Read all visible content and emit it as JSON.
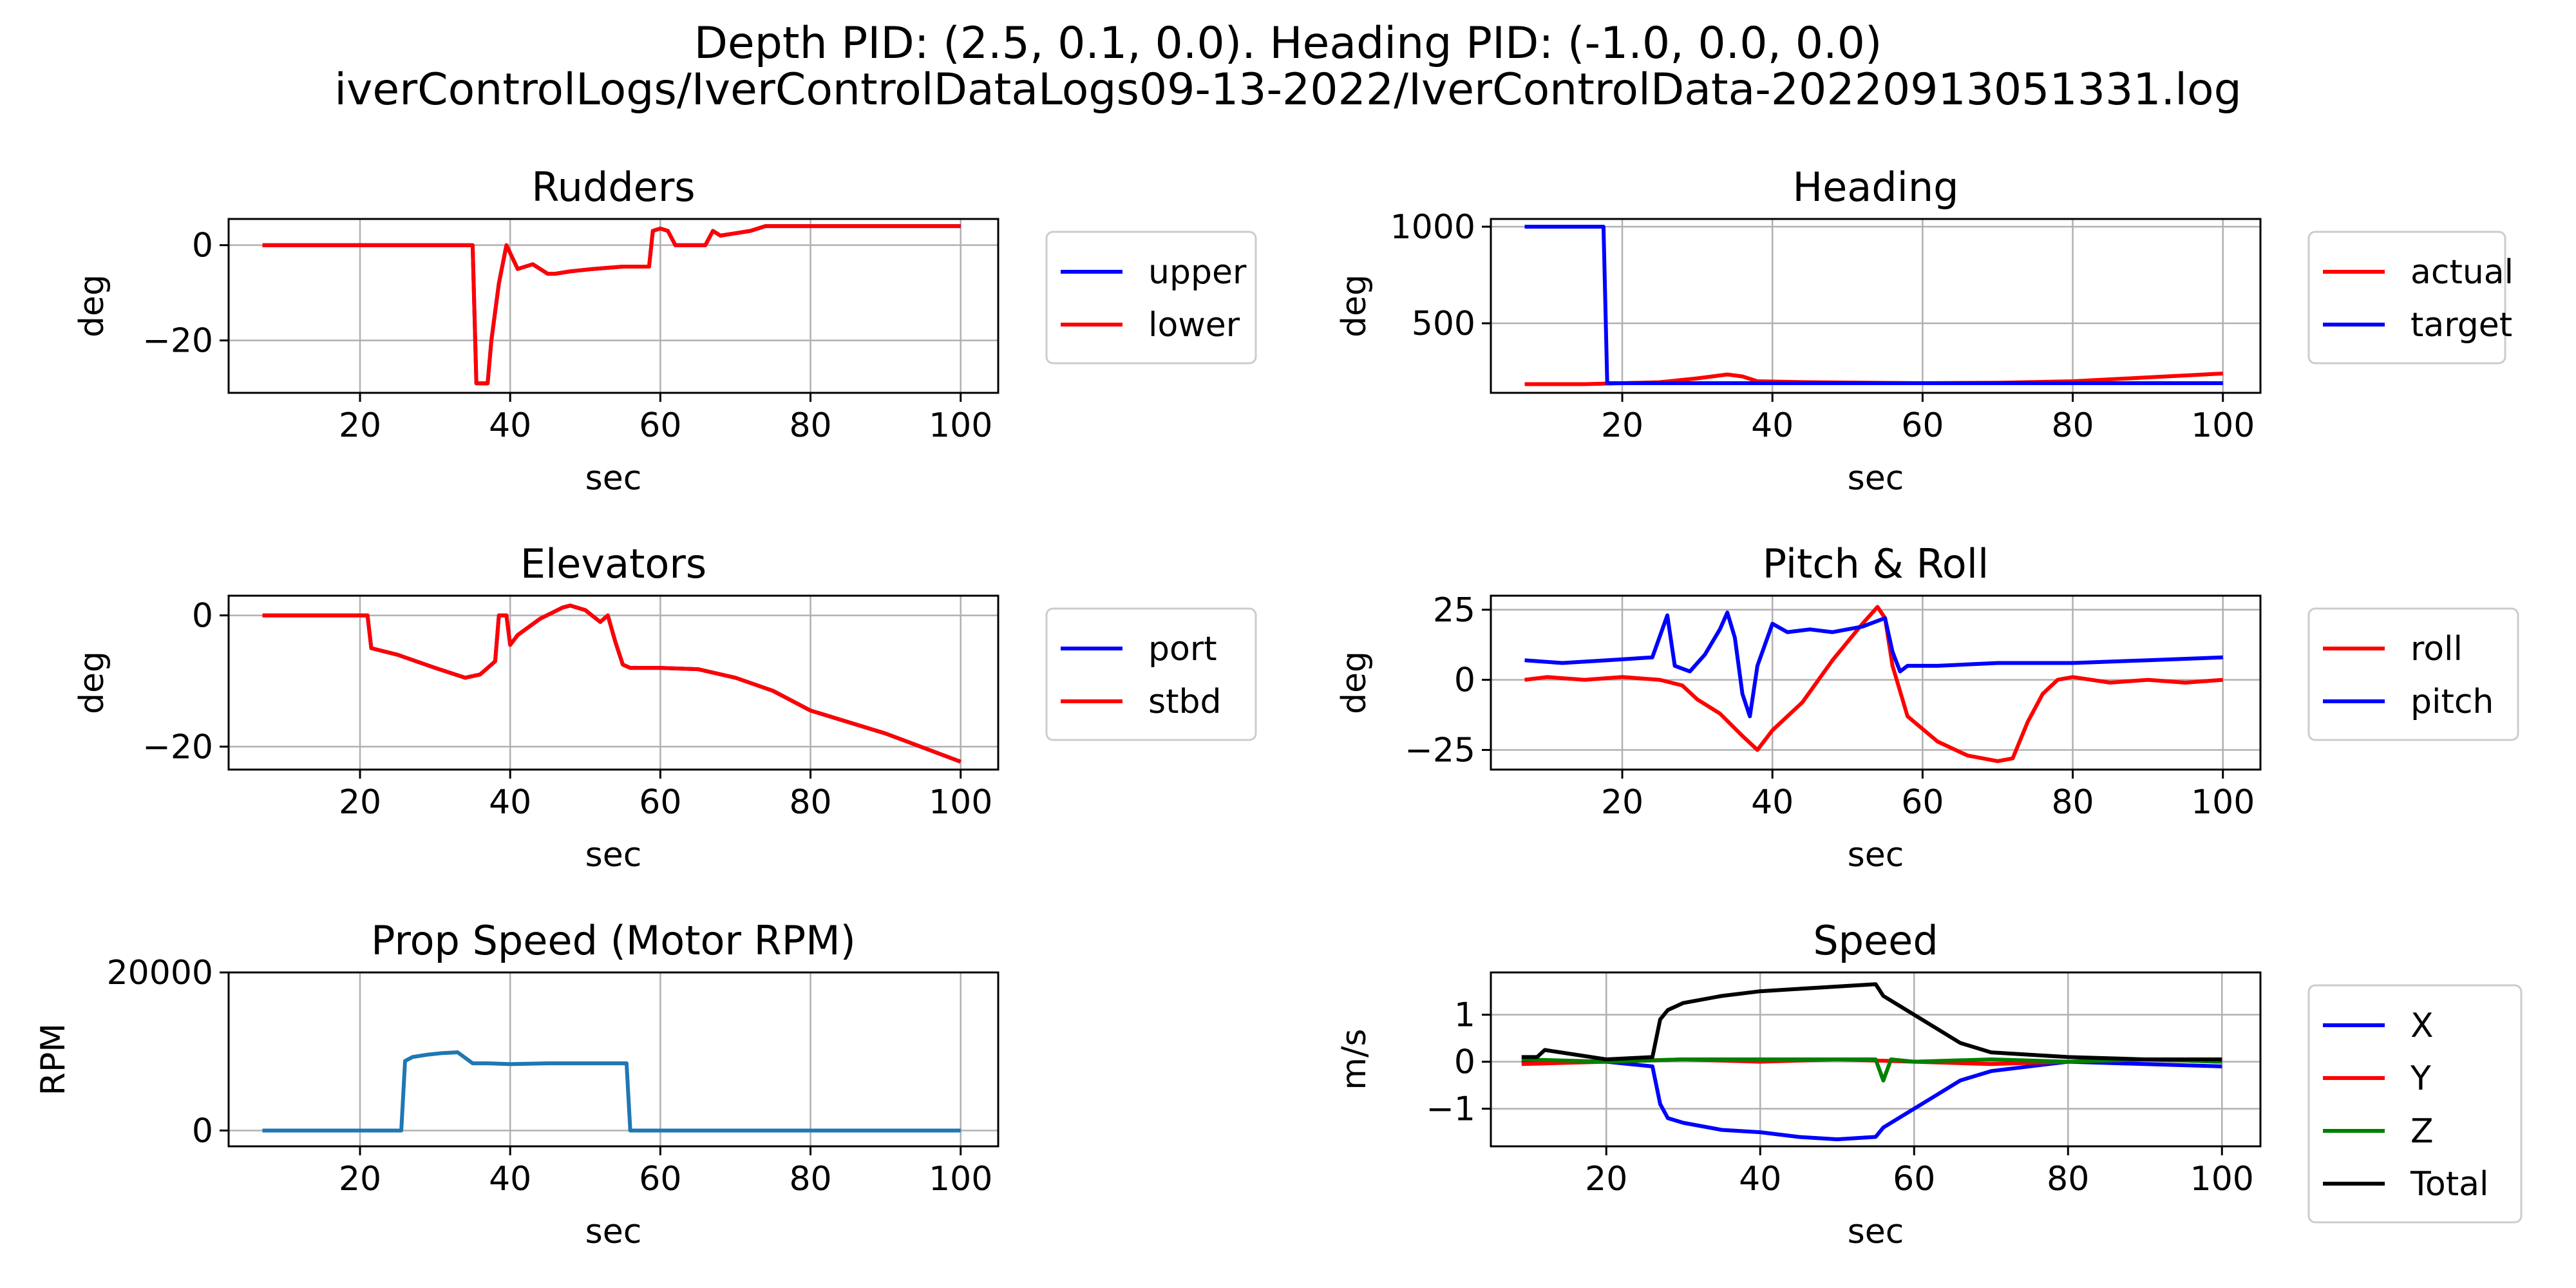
{
  "figure": {
    "title_line1": "Depth PID: (2.5, 0.1, 0.0). Heading PID: (-1.0, 0.0, 0.0)",
    "title_line2": "iverControlLogs/IverControlDataLogs09-13-2022/IverControlData-20220913051331.log"
  },
  "chart_data": [
    {
      "id": "rudders",
      "type": "line",
      "title": "Rudders",
      "xlabel": "sec",
      "ylabel": "deg",
      "xlim": [
        2.5,
        105
      ],
      "ylim": [
        -31,
        5.5
      ],
      "xticks": [
        20,
        40,
        60,
        80,
        100
      ],
      "yticks": [
        -20,
        0
      ],
      "grid": true,
      "legend": "outside-right",
      "series": [
        {
          "name": "upper",
          "color": "#0000ff",
          "x": [
            7,
            35,
            35.5,
            37,
            37.5,
            38.5,
            39.5,
            41,
            43,
            45,
            46,
            48,
            51,
            55,
            58.5,
            59,
            60,
            61,
            62,
            66,
            67,
            68,
            70,
            72,
            74,
            100
          ],
          "y": [
            0,
            0,
            -29,
            -29,
            -20,
            -8,
            0,
            -5,
            -4,
            -6,
            -6,
            -5.5,
            -5,
            -4.5,
            -4.5,
            3,
            3.5,
            3,
            0,
            0,
            3,
            2,
            2.5,
            3,
            4,
            4
          ]
        },
        {
          "name": "lower",
          "color": "#ff0000",
          "x": [
            7,
            35,
            35.5,
            37,
            37.5,
            38.5,
            39.5,
            41,
            43,
            45,
            46,
            48,
            51,
            55,
            58.5,
            59,
            60,
            61,
            62,
            66,
            67,
            68,
            70,
            72,
            74,
            100
          ],
          "y": [
            0,
            0,
            -29,
            -29,
            -20,
            -8,
            0,
            -5,
            -4,
            -6,
            -6,
            -5.5,
            -5,
            -4.5,
            -4.5,
            3,
            3.5,
            3,
            0,
            0,
            3,
            2,
            2.5,
            3,
            4,
            4
          ]
        }
      ]
    },
    {
      "id": "heading",
      "type": "line",
      "title": "Heading",
      "xlabel": "sec",
      "ylabel": "deg",
      "xlim": [
        2.5,
        105
      ],
      "ylim": [
        140,
        1040
      ],
      "xticks": [
        20,
        40,
        60,
        80,
        100
      ],
      "yticks": [
        500,
        1000
      ],
      "grid": true,
      "legend": "outside-right",
      "series": [
        {
          "name": "actual",
          "color": "#ff0000",
          "x": [
            7,
            15,
            20,
            25,
            30,
            34,
            36,
            38,
            45,
            60,
            70,
            80,
            90,
            100
          ],
          "y": [
            185,
            185,
            190,
            195,
            215,
            235,
            225,
            200,
            195,
            190,
            192,
            200,
            220,
            240
          ]
        },
        {
          "name": "target",
          "color": "#0000ff",
          "x": [
            7,
            17.5,
            18,
            30,
            40,
            60,
            80,
            100
          ],
          "y": [
            1000,
            1000,
            190,
            190,
            190,
            190,
            190,
            190
          ]
        }
      ]
    },
    {
      "id": "elevators",
      "type": "line",
      "title": "Elevators",
      "xlabel": "sec",
      "ylabel": "deg",
      "xlim": [
        2.5,
        105
      ],
      "ylim": [
        -23.5,
        3
      ],
      "xticks": [
        20,
        40,
        60,
        80,
        100
      ],
      "yticks": [
        -20,
        0
      ],
      "grid": true,
      "legend": "outside-right",
      "series": [
        {
          "name": "port",
          "color": "#0000ff",
          "x": [
            7,
            21,
            21.5,
            25,
            30,
            34,
            36,
            38,
            38.5,
            39.5,
            40,
            41,
            44,
            47,
            48,
            50,
            52,
            53,
            54,
            55,
            56,
            60,
            65,
            70,
            75,
            80,
            90,
            100
          ],
          "y": [
            0,
            0,
            -5,
            -6,
            -8,
            -9.5,
            -9,
            -7,
            0,
            0,
            -4.5,
            -3,
            -0.5,
            1.2,
            1.5,
            0.8,
            -1,
            0,
            -4,
            -7.5,
            -8,
            -8,
            -8.2,
            -9.5,
            -11.5,
            -14.5,
            -18,
            -22.3
          ]
        },
        {
          "name": "stbd",
          "color": "#ff0000",
          "x": [
            7,
            21,
            21.5,
            25,
            30,
            34,
            36,
            38,
            38.5,
            39.5,
            40,
            41,
            44,
            47,
            48,
            50,
            52,
            53,
            54,
            55,
            56,
            60,
            65,
            70,
            75,
            80,
            90,
            100
          ],
          "y": [
            0,
            0,
            -5,
            -6,
            -8,
            -9.5,
            -9,
            -7,
            0,
            0,
            -4.5,
            -3,
            -0.5,
            1.2,
            1.5,
            0.8,
            -1,
            0,
            -4,
            -7.5,
            -8,
            -8,
            -8.2,
            -9.5,
            -11.5,
            -14.5,
            -18,
            -22.3
          ]
        }
      ]
    },
    {
      "id": "pitchroll",
      "type": "line",
      "title": "Pitch & Roll",
      "xlabel": "sec",
      "ylabel": "deg",
      "xlim": [
        2.5,
        105
      ],
      "ylim": [
        -32,
        30
      ],
      "xticks": [
        20,
        40,
        60,
        80,
        100
      ],
      "yticks": [
        -25,
        0,
        25
      ],
      "grid": true,
      "legend": "outside-right",
      "series": [
        {
          "name": "roll",
          "color": "#ff0000",
          "x": [
            7,
            10,
            15,
            20,
            25,
            28,
            30,
            33,
            36,
            38,
            40,
            44,
            48,
            52,
            54,
            55,
            56,
            58,
            62,
            66,
            70,
            72,
            74,
            76,
            78,
            80,
            85,
            90,
            95,
            100
          ],
          "y": [
            0,
            1,
            0,
            1,
            0,
            -2,
            -7,
            -12,
            -20,
            -25,
            -18,
            -8,
            7,
            20,
            26,
            22,
            5,
            -13,
            -22,
            -27,
            -29,
            -28,
            -15,
            -5,
            0,
            1,
            -1,
            0,
            -1,
            0
          ]
        },
        {
          "name": "pitch",
          "color": "#0000ff",
          "x": [
            7,
            12,
            18,
            24,
            26,
            27,
            29,
            31,
            33,
            34,
            35,
            36,
            37,
            38,
            40,
            42,
            45,
            48,
            52,
            55,
            56,
            57,
            58,
            62,
            70,
            80,
            90,
            100
          ],
          "y": [
            7,
            6,
            7,
            8,
            23,
            5,
            3,
            9,
            18,
            24,
            15,
            -5,
            -13,
            5,
            20,
            17,
            18,
            17,
            19,
            22,
            10,
            3,
            5,
            5,
            6,
            6,
            7,
            8
          ]
        }
      ]
    },
    {
      "id": "prop",
      "type": "line",
      "title": "Prop Speed (Motor RPM)",
      "xlabel": "sec",
      "ylabel": "RPM",
      "xlim": [
        2.5,
        105
      ],
      "ylim": [
        -2000,
        20000
      ],
      "xticks": [
        20,
        40,
        60,
        80,
        100
      ],
      "yticks": [
        0,
        20000
      ],
      "grid": true,
      "legend": "none",
      "series": [
        {
          "name": "",
          "color": "#1f77b4",
          "x": [
            7,
            25.5,
            26,
            27,
            29,
            31,
            33,
            34,
            35,
            37,
            40,
            45,
            50,
            55.5,
            56,
            100
          ],
          "y": [
            0,
            0,
            8800,
            9300,
            9600,
            9800,
            9900,
            9200,
            8500,
            8500,
            8400,
            8500,
            8500,
            8500,
            0,
            0
          ]
        }
      ]
    },
    {
      "id": "speed",
      "type": "line",
      "title": "Speed",
      "xlabel": "sec",
      "ylabel": "m/s",
      "xlim": [
        5,
        105
      ],
      "ylim": [
        -1.8,
        1.9
      ],
      "xticks": [
        20,
        40,
        60,
        80,
        100
      ],
      "yticks": [
        -1,
        0,
        1
      ],
      "grid": true,
      "legend": "outside-right",
      "series": [
        {
          "name": "X",
          "color": "#0000ff",
          "x": [
            9,
            20,
            26,
            27,
            28,
            30,
            35,
            40,
            45,
            50,
            55,
            56,
            58,
            62,
            66,
            70,
            80,
            90,
            100
          ],
          "y": [
            0,
            0,
            -0.1,
            -0.9,
            -1.2,
            -1.3,
            -1.45,
            -1.5,
            -1.6,
            -1.65,
            -1.6,
            -1.4,
            -1.2,
            -0.8,
            -0.4,
            -0.2,
            0,
            -0.05,
            -0.1
          ]
        },
        {
          "name": "Y",
          "color": "#ff0000",
          "x": [
            9,
            20,
            30,
            40,
            50,
            60,
            70,
            80,
            90,
            100
          ],
          "y": [
            -0.05,
            0,
            0.05,
            0,
            0.05,
            0,
            -0.05,
            0,
            0.05,
            0
          ]
        },
        {
          "name": "Z",
          "color": "#008000",
          "x": [
            9,
            20,
            30,
            40,
            50,
            55,
            56,
            57,
            60,
            70,
            80,
            90,
            100
          ],
          "y": [
            0.05,
            0,
            0.05,
            0.05,
            0.05,
            0.05,
            -0.4,
            0.05,
            0,
            0.05,
            0,
            0.05,
            0
          ]
        },
        {
          "name": "Total",
          "color": "#000000",
          "x": [
            9,
            11,
            12,
            20,
            26,
            27,
            28,
            30,
            35,
            40,
            45,
            50,
            55,
            56,
            58,
            62,
            66,
            70,
            80,
            90,
            100
          ],
          "y": [
            0.1,
            0.1,
            0.25,
            0.05,
            0.1,
            0.9,
            1.1,
            1.25,
            1.4,
            1.5,
            1.55,
            1.6,
            1.65,
            1.4,
            1.2,
            0.8,
            0.4,
            0.2,
            0.1,
            0.05,
            0.05
          ]
        }
      ]
    }
  ]
}
